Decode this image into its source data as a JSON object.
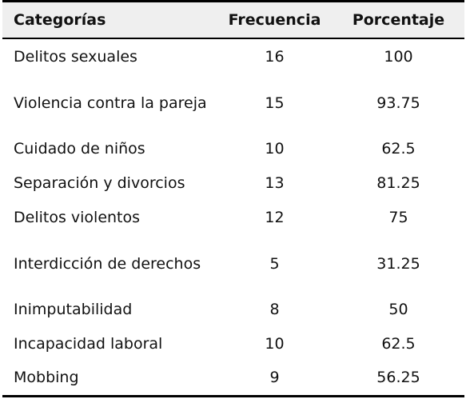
{
  "table": {
    "headers": [
      "Categorías",
      "Frecuencia",
      "Porcentaje"
    ],
    "rows": [
      [
        "Delitos sexuales",
        "16",
        "100"
      ],
      [
        "Violencia contra la pareja",
        "15",
        "93.75"
      ],
      [
        "Cuidado de niños",
        "10",
        "62.5"
      ],
      [
        "Separación y divorcios",
        "13",
        "81.25"
      ],
      [
        "Delitos violentos",
        "12",
        "75"
      ],
      [
        "Interdicción de derechos",
        "5",
        "31.25"
      ],
      [
        "Inimputabilidad",
        "8",
        "50"
      ],
      [
        "Incapacidad laboral",
        "10",
        "62.5"
      ],
      [
        "Mobbing",
        "9",
        "56.25"
      ]
    ]
  }
}
